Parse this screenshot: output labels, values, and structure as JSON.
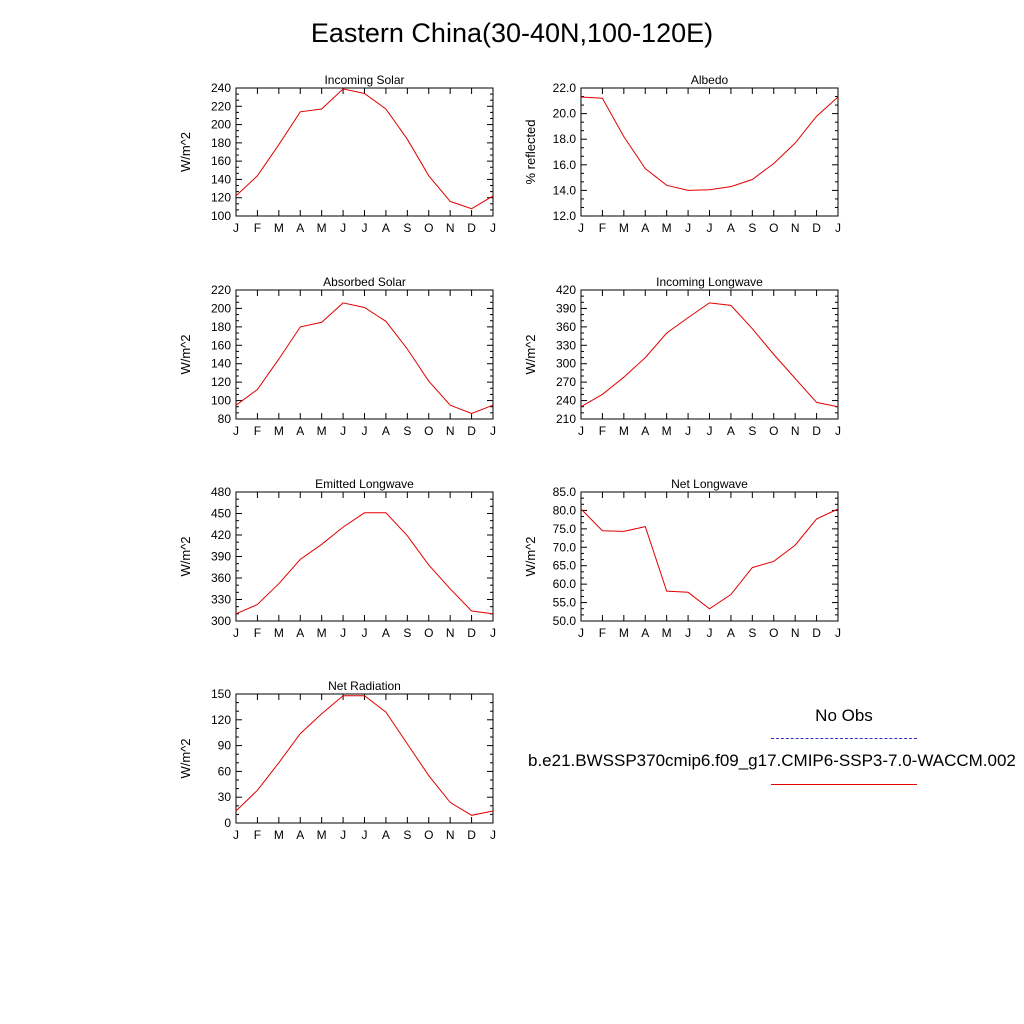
{
  "figure": {
    "title": "Eastern China(30-40N,100-120E)"
  },
  "legend": {
    "obs_label": "No Obs",
    "model_label": "b.e21.BWSSP370cmip6.f09_g17.CMIP6-SSP3-7.0-WACCM.002",
    "obs_color": "#3333cc",
    "model_color": "#e00000"
  },
  "chart_data": [
    {
      "type": "line",
      "title": "Incoming Solar",
      "ylabel": "W/m^2",
      "x": [
        "J",
        "F",
        "M",
        "A",
        "M",
        "J",
        "J",
        "A",
        "S",
        "O",
        "N",
        "D",
        "J"
      ],
      "ylim": [
        100,
        240
      ],
      "yticks": [
        100,
        120,
        140,
        160,
        180,
        200,
        220,
        240
      ],
      "ytick_labels": [
        "100",
        "120",
        "140",
        "160",
        "180",
        "200",
        "220",
        "240"
      ],
      "series": [
        {
          "values": [
            122,
            144,
            178,
            214,
            217,
            239,
            234,
            217,
            184,
            144,
            116,
            108,
            122
          ],
          "color": "#e00000"
        }
      ]
    },
    {
      "type": "line",
      "title": "Albedo",
      "ylabel": "% reflected",
      "x": [
        "J",
        "F",
        "M",
        "A",
        "M",
        "J",
        "J",
        "A",
        "S",
        "O",
        "N",
        "D",
        "J"
      ],
      "ylim": [
        12,
        22
      ],
      "yticks": [
        12,
        14,
        16,
        18,
        20,
        22
      ],
      "ytick_labels": [
        "12.0",
        "14.0",
        "16.0",
        "18.0",
        "20.0",
        "22.0"
      ],
      "series": [
        {
          "values": [
            21.3,
            21.2,
            18.2,
            15.7,
            14.4,
            14.0,
            14.05,
            14.3,
            14.85,
            16.1,
            17.7,
            19.8,
            21.3
          ],
          "color": "#e00000"
        }
      ]
    },
    {
      "type": "line",
      "title": "Absorbed Solar",
      "ylabel": "W/m^2",
      "x": [
        "J",
        "F",
        "M",
        "A",
        "M",
        "J",
        "J",
        "A",
        "S",
        "O",
        "N",
        "D",
        "J"
      ],
      "ylim": [
        80,
        220
      ],
      "yticks": [
        80,
        100,
        120,
        140,
        160,
        180,
        200,
        220
      ],
      "ytick_labels": [
        "80",
        "100",
        "120",
        "140",
        "160",
        "180",
        "200",
        "220"
      ],
      "series": [
        {
          "values": [
            95,
            112,
            145,
            180,
            185,
            206,
            201,
            186,
            156,
            121,
            95,
            86,
            95
          ],
          "color": "#e00000"
        }
      ]
    },
    {
      "type": "line",
      "title": "Incoming Longwave",
      "ylabel": "W/m^2",
      "x": [
        "J",
        "F",
        "M",
        "A",
        "M",
        "J",
        "J",
        "A",
        "S",
        "O",
        "N",
        "D",
        "J"
      ],
      "ylim": [
        210,
        420
      ],
      "yticks": [
        210,
        240,
        270,
        300,
        330,
        360,
        390,
        420
      ],
      "ytick_labels": [
        "210",
        "240",
        "270",
        "300",
        "330",
        "360",
        "390",
        "420"
      ],
      "series": [
        {
          "values": [
            230,
            250,
            278,
            310,
            350,
            375,
            399,
            395,
            357,
            315,
            276,
            237,
            230
          ],
          "color": "#e00000"
        }
      ]
    },
    {
      "type": "line",
      "title": "Emitted Longwave",
      "ylabel": "W/m^2",
      "x": [
        "J",
        "F",
        "M",
        "A",
        "M",
        "J",
        "J",
        "A",
        "S",
        "O",
        "N",
        "D",
        "J"
      ],
      "ylim": [
        300,
        480
      ],
      "yticks": [
        300,
        330,
        360,
        390,
        420,
        450,
        480
      ],
      "ytick_labels": [
        "300",
        "330",
        "360",
        "390",
        "420",
        "450",
        "480"
      ],
      "series": [
        {
          "values": [
            310,
            323,
            352,
            386,
            407,
            431,
            451,
            451,
            419,
            378,
            345,
            314,
            310
          ],
          "color": "#e00000"
        }
      ]
    },
    {
      "type": "line",
      "title": "Net Longwave",
      "ylabel": "W/m^2",
      "x": [
        "J",
        "F",
        "M",
        "A",
        "M",
        "J",
        "J",
        "A",
        "S",
        "O",
        "N",
        "D",
        "J"
      ],
      "ylim": [
        50,
        85
      ],
      "yticks": [
        50,
        55,
        60,
        65,
        70,
        75,
        80,
        85
      ],
      "ytick_labels": [
        "50.0",
        "55.0",
        "60.0",
        "65.0",
        "70.0",
        "75.0",
        "80.0",
        "85.0"
      ],
      "series": [
        {
          "values": [
            80.4,
            74.5,
            74.3,
            75.6,
            58.1,
            57.8,
            53.3,
            57.2,
            64.5,
            66.2,
            70.6,
            77.7,
            80.4
          ],
          "color": "#e00000"
        }
      ]
    },
    {
      "type": "line",
      "title": "Net Radiation",
      "ylabel": "W/m^2",
      "x": [
        "J",
        "F",
        "M",
        "A",
        "M",
        "J",
        "J",
        "A",
        "S",
        "O",
        "N",
        "D",
        "J"
      ],
      "ylim": [
        0,
        150
      ],
      "yticks": [
        0,
        30,
        60,
        90,
        120,
        150
      ],
      "ytick_labels": [
        "0",
        "30",
        "60",
        "90",
        "120",
        "150"
      ],
      "series": [
        {
          "values": [
            14,
            38,
            70,
            104,
            127,
            148,
            148,
            129,
            92,
            55,
            24,
            9,
            14
          ],
          "color": "#e00000"
        }
      ]
    }
  ]
}
